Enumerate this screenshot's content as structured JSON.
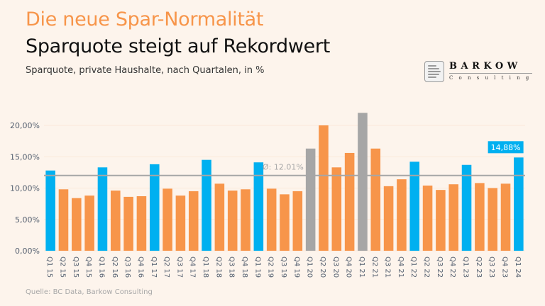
{
  "header": {
    "kicker": "Die neue Spar-Normalität",
    "title": "Sparquote steigt auf Rekordwert",
    "subtitle": "Sparquote, private Haushalte, nach Quartalen, in %"
  },
  "logo": {
    "name": "BARKOW",
    "sub": "Consulting"
  },
  "source": "Quelle: BC Data, Barkow Consulting",
  "colors": {
    "q1": "#00b0f0",
    "default": "#f7954a",
    "covid": "#a6a6a6",
    "average_line": "#a6a6a6",
    "background": "#fdf4ec"
  },
  "chart_data": {
    "type": "bar",
    "title": "Sparquote steigt auf Rekordwert",
    "xlabel": "",
    "ylabel": "",
    "ylim": [
      0,
      20
    ],
    "yticks": [
      0,
      5,
      10,
      15,
      20
    ],
    "ytick_labels": [
      "0,00%",
      "5,00%",
      "10,00%",
      "15,00%",
      "20,00%"
    ],
    "grid": true,
    "categories": [
      "Q1 15",
      "Q2 15",
      "Q3 15",
      "Q4 15",
      "Q1 16",
      "Q2 16",
      "Q3 16",
      "Q4 16",
      "Q1 17",
      "Q2 17",
      "Q3 17",
      "Q4 17",
      "Q1 18",
      "Q2 18",
      "Q3 18",
      "Q4 18",
      "Q1 19",
      "Q2 19",
      "Q3 19",
      "Q4 19",
      "Q1 20",
      "Q2 20",
      "Q3 20",
      "Q4 20",
      "Q1 21",
      "Q2 21",
      "Q3 21",
      "Q4 21",
      "Q1 22",
      "Q2 22",
      "Q3 22",
      "Q4 22",
      "Q1 23",
      "Q2 23",
      "Q3 23",
      "Q4 23",
      "Q1 24"
    ],
    "values": [
      12.8,
      9.8,
      8.4,
      8.8,
      13.3,
      9.6,
      8.6,
      8.7,
      13.8,
      9.9,
      8.8,
      9.5,
      14.5,
      10.7,
      9.6,
      9.8,
      14.1,
      9.9,
      9.0,
      9.5,
      16.3,
      20.0,
      13.3,
      15.6,
      22.0,
      16.3,
      10.3,
      11.4,
      14.2,
      10.4,
      9.7,
      10.6,
      13.7,
      10.8,
      10.0,
      10.7,
      14.88
    ],
    "bar_groups": [
      "q1",
      "default",
      "default",
      "default",
      "q1",
      "default",
      "default",
      "default",
      "q1",
      "default",
      "default",
      "default",
      "q1",
      "default",
      "default",
      "default",
      "q1",
      "default",
      "default",
      "default",
      "covid",
      "default",
      "default",
      "default",
      "covid",
      "default",
      "default",
      "default",
      "q1",
      "default",
      "default",
      "default",
      "q1",
      "default",
      "default",
      "default",
      "q1"
    ],
    "average": {
      "value": 12.01,
      "label": "Ø: 12.01%"
    },
    "highlight": {
      "category": "Q1 24",
      "label": "14,88%"
    }
  }
}
